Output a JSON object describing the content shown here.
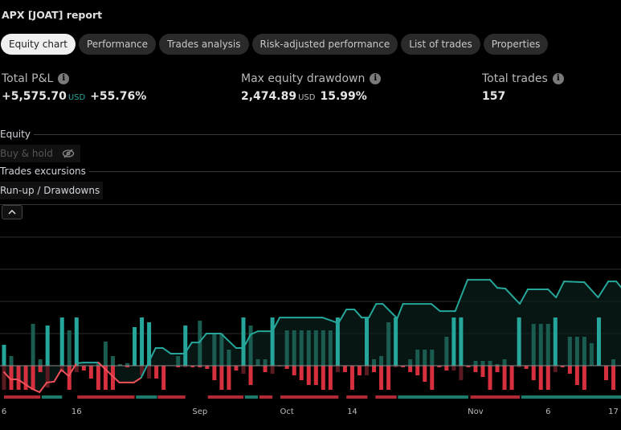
{
  "title": "APX [JOAT] report",
  "tabs": [
    {
      "label": "Equity chart",
      "active": true
    },
    {
      "label": "Performance",
      "active": false
    },
    {
      "label": "Trades analysis",
      "active": false
    },
    {
      "label": "Risk-adjusted performance",
      "active": false
    },
    {
      "label": "List of trades",
      "active": false
    },
    {
      "label": "Properties",
      "active": false
    }
  ],
  "stats": {
    "total_pnl": {
      "label": "Total P&L",
      "value": "+5,575.70",
      "unit": "USD",
      "percent": "+55.76%"
    },
    "max_drawdown": {
      "label": "Max equity drawdown",
      "value": "2,474.89",
      "unit": "USD",
      "percent": "15.99%"
    },
    "total_trades": {
      "label": "Total trades",
      "value": "157"
    }
  },
  "legend": {
    "equity": "Equity",
    "buy_hold": "Buy & hold",
    "trades_excursions": "Trades excursions",
    "runup_drawdowns": "Run-up / Drawdowns"
  },
  "colors": {
    "up": "#26a69a",
    "up_dim": "#1a5c50",
    "down": "#d6303f",
    "down_dim": "#5a1b20",
    "grid": "#2e2e2e",
    "zero": "#8a8a8a"
  },
  "chart_data": {
    "type": "bar+line",
    "x_ticks": [
      {
        "day": 0,
        "label": "6"
      },
      {
        "day": 10,
        "label": "16"
      },
      {
        "day": 27,
        "label": "Sep"
      },
      {
        "day": 39,
        "label": "Oct"
      },
      {
        "day": 48,
        "label": "14"
      },
      {
        "day": 65,
        "label": "Nov"
      },
      {
        "day": 75,
        "label": "6"
      },
      {
        "day": 84,
        "label": "17"
      }
    ],
    "usd_per_unit": 2350,
    "runup": [
      0.65,
      0.3,
      0,
      0,
      1.3,
      0.2,
      1.25,
      0,
      1.5,
      1.1,
      1.5,
      0,
      0,
      0.1,
      0.75,
      0.3,
      0.05,
      0.08,
      1.2,
      1.5,
      1.35,
      0,
      0,
      0,
      0.3,
      1.25,
      0,
      1.4,
      0,
      1.0,
      1.0,
      0.5,
      0,
      1.5,
      1.25,
      0.2,
      0.2,
      1.5,
      0,
      1.1,
      1.1,
      1.1,
      1.1,
      1.1,
      1.1,
      1.1,
      1.5,
      0,
      0,
      0,
      1.5,
      0.2,
      0.3,
      1.35,
      1.5,
      0,
      0.2,
      0.5,
      0.5,
      0.5,
      0,
      0.9,
      1.5,
      1.5,
      0,
      0.15,
      0.15,
      0.15,
      0.05,
      0.2,
      0,
      1.5,
      0,
      1.3,
      1.3,
      1.3,
      1.5,
      0,
      0.9,
      0.9,
      0.9,
      0.7,
      1.5,
      0,
      0.2
    ],
    "drawdown": [
      0.75,
      0.75,
      0.75,
      0.75,
      0.75,
      0.2,
      0.68,
      0,
      0.2,
      0.75,
      0.2,
      0.15,
      0.4,
      0.75,
      0.75,
      0.75,
      0,
      0.05,
      0,
      0.3,
      0.4,
      0.4,
      0.75,
      0,
      0.05,
      0.05,
      0.05,
      0.05,
      0.1,
      0.45,
      0.75,
      0.75,
      0.15,
      0.25,
      0.6,
      0,
      0.2,
      0.25,
      0.02,
      0.1,
      0.3,
      0.45,
      0.6,
      0.6,
      0.75,
      0.75,
      0.2,
      0.2,
      0.75,
      0.3,
      0.3,
      0.2,
      0.75,
      0.75,
      0.05,
      0.05,
      0.2,
      0.3,
      0.5,
      0.75,
      0.05,
      0.15,
      0.15,
      0.45,
      0.05,
      0.2,
      0.35,
      0.75,
      0.2,
      0.75,
      0.75,
      0.05,
      0.1,
      0.45,
      0.75,
      0.75,
      0.2,
      0.05,
      0.25,
      0.6,
      0.75,
      0,
      0,
      0.45,
      0.75
    ],
    "winning": [
      1,
      0,
      0,
      0,
      0,
      0,
      1,
      0,
      1,
      0,
      1,
      0,
      0,
      0,
      0,
      0,
      0,
      0,
      1,
      1,
      1,
      0,
      0,
      0,
      0,
      1,
      0,
      0,
      0,
      0,
      0,
      0,
      0,
      1,
      0,
      0,
      0,
      1,
      0,
      0,
      0,
      0,
      0,
      0,
      0,
      0,
      1,
      0,
      0,
      0,
      1,
      0,
      0,
      0,
      1,
      0,
      0,
      0,
      0,
      0,
      0,
      0,
      1,
      1,
      0,
      0,
      0,
      0,
      0,
      0,
      0,
      1,
      0,
      0,
      0,
      0,
      1,
      0,
      0,
      0,
      0,
      0,
      1,
      0,
      0
    ],
    "equity": [
      [
        0,
        -470
      ],
      [
        0.9,
        -1000
      ],
      [
        1.9,
        -1000
      ],
      [
        3.9,
        -1700
      ],
      [
        4.9,
        -1940
      ],
      [
        5.9,
        -1230
      ],
      [
        6.9,
        -1170
      ],
      [
        7.9,
        -290
      ],
      [
        8.9,
        -760
      ],
      [
        10,
        180
      ],
      [
        11,
        230
      ],
      [
        13,
        230
      ],
      [
        15.9,
        -1230
      ],
      [
        17.9,
        -1230
      ],
      [
        18.9,
        -880
      ],
      [
        20.9,
        1290
      ],
      [
        21.9,
        1290
      ],
      [
        23,
        880
      ],
      [
        24.9,
        880
      ],
      [
        25.9,
        1700
      ],
      [
        26.9,
        1700
      ],
      [
        27.9,
        2350
      ],
      [
        29.9,
        2350
      ],
      [
        32,
        1290
      ],
      [
        33,
        1290
      ],
      [
        34,
        2290
      ],
      [
        35,
        2520
      ],
      [
        37,
        2520
      ],
      [
        38,
        3520
      ],
      [
        43.9,
        3520
      ],
      [
        46.1,
        3110
      ],
      [
        47.2,
        4110
      ],
      [
        48.3,
        4110
      ],
      [
        49.3,
        3520
      ],
      [
        50.3,
        3520
      ],
      [
        51.3,
        4520
      ],
      [
        52.2,
        4520
      ],
      [
        54.2,
        3460
      ],
      [
        55,
        4520
      ],
      [
        58.9,
        4520
      ],
      [
        60.1,
        3990
      ],
      [
        62.2,
        3990
      ],
      [
        63.9,
        6280
      ],
      [
        67,
        6280
      ],
      [
        68,
        5690
      ],
      [
        69.1,
        5640
      ],
      [
        71.1,
        4520
      ],
      [
        72.2,
        5580
      ],
      [
        75,
        5580
      ],
      [
        76.1,
        4990
      ],
      [
        77.2,
        6160
      ],
      [
        80,
        6100
      ],
      [
        81.9,
        4990
      ],
      [
        83.3,
        6160
      ],
      [
        84.4,
        6160
      ],
      [
        85.3,
        5580
      ]
    ],
    "streaks": [
      [
        0,
        5,
        "down"
      ],
      [
        5.2,
        8,
        "up"
      ],
      [
        10.1,
        18,
        "down"
      ],
      [
        18.2,
        21.1,
        "up"
      ],
      [
        21.2,
        25,
        "down"
      ],
      [
        28.1,
        33,
        "down"
      ],
      [
        33.2,
        35,
        "up"
      ],
      [
        35.2,
        37,
        "down"
      ],
      [
        38.1,
        46.1,
        "down"
      ],
      [
        47.2,
        50.1,
        "down"
      ],
      [
        51.2,
        54.1,
        "down"
      ],
      [
        54.3,
        64,
        "up"
      ],
      [
        64.3,
        71.1,
        "down"
      ],
      [
        71.3,
        86,
        "up"
      ]
    ]
  }
}
